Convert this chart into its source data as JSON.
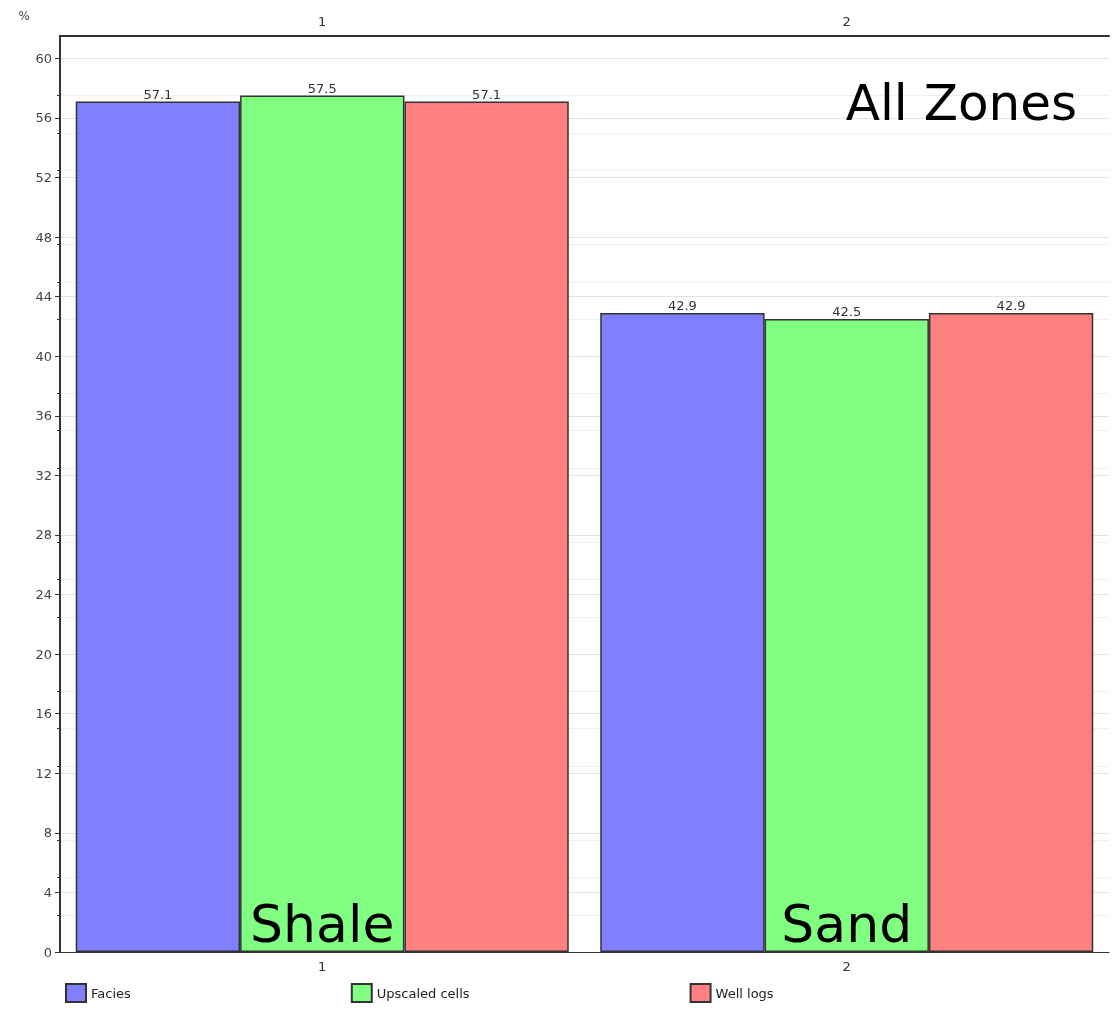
{
  "chart_data": {
    "type": "bar",
    "ylabel": "%",
    "categories": [
      "1",
      "2"
    ],
    "series": [
      {
        "name": "Facies",
        "color": "#8080ff",
        "values": [
          57.1,
          42.9
        ]
      },
      {
        "name": "Upscaled cells",
        "color": "#80ff80",
        "values": [
          57.5,
          42.5
        ]
      },
      {
        "name": "Well logs",
        "color": "#ff8080",
        "values": [
          57.1,
          42.9
        ]
      }
    ],
    "ylim": [
      0,
      61.5
    ],
    "yticks": [
      0,
      4,
      8,
      12,
      16,
      20,
      24,
      28,
      32,
      36,
      40,
      44,
      48,
      52,
      56,
      60
    ],
    "data_labels": true,
    "grid": "y",
    "legend": "bottom",
    "annotations": [
      "All Zones",
      {
        "text": "Shale",
        "x": "1",
        "y": 0
      },
      {
        "text": "Sand",
        "x": "2",
        "y": 0
      }
    ]
  }
}
